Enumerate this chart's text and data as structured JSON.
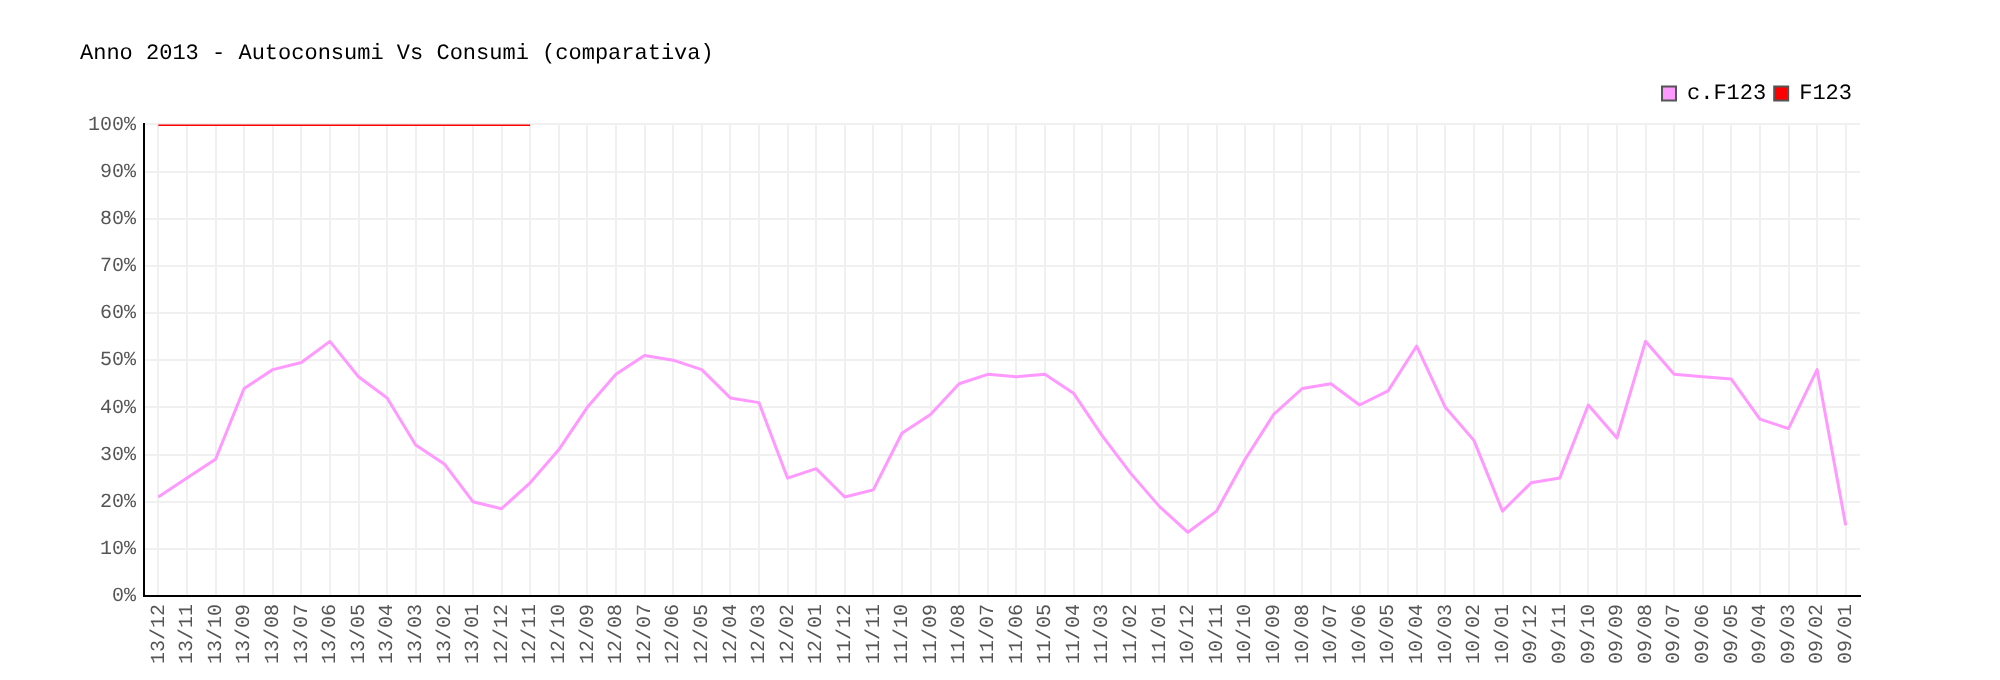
{
  "chart_data": {
    "type": "line",
    "title": "Anno 2013 - Autoconsumi Vs Consumi (comparativa)",
    "categories": [
      "13/12",
      "13/11",
      "13/10",
      "13/09",
      "13/08",
      "13/07",
      "13/06",
      "13/05",
      "13/04",
      "13/03",
      "13/02",
      "13/01",
      "12/12",
      "12/11",
      "12/10",
      "12/09",
      "12/08",
      "12/07",
      "12/06",
      "12/05",
      "12/04",
      "12/03",
      "12/02",
      "12/01",
      "11/12",
      "11/11",
      "11/10",
      "11/09",
      "11/08",
      "11/07",
      "11/06",
      "11/05",
      "11/04",
      "11/03",
      "11/02",
      "11/01",
      "10/12",
      "10/11",
      "10/10",
      "10/09",
      "10/08",
      "10/07",
      "10/06",
      "10/05",
      "10/04",
      "10/03",
      "10/02",
      "10/01",
      "09/12",
      "09/11",
      "09/10",
      "09/09",
      "09/08",
      "09/07",
      "09/06",
      "09/05",
      "09/04",
      "09/03",
      "09/02",
      "09/01"
    ],
    "series": [
      {
        "name": "c.F123",
        "color": "#ff99ff",
        "values": [
          21,
          25,
          29,
          44,
          48,
          49.5,
          54,
          46.5,
          42,
          32,
          28,
          20,
          18.5,
          24,
          31,
          40,
          47,
          51,
          50,
          48,
          42,
          41,
          25,
          27,
          21,
          22.5,
          34.5,
          38.5,
          45,
          47,
          46.5,
          47,
          43,
          34,
          26,
          19,
          13.5,
          18,
          29,
          38.5,
          44,
          45,
          40.5,
          43.5,
          53,
          40,
          33,
          18,
          24,
          25,
          40.5,
          33.5,
          54,
          47,
          46.5,
          46,
          37.5,
          35.5,
          48,
          15
        ]
      },
      {
        "name": "F123",
        "color": "#ff0000",
        "values": [
          100,
          100,
          100,
          100,
          100,
          100,
          100,
          100,
          100,
          100,
          100,
          100,
          100,
          100,
          null,
          null,
          null,
          null,
          null,
          null,
          null,
          null,
          null,
          null,
          null,
          null,
          null,
          null,
          null,
          null,
          null,
          null,
          null,
          null,
          null,
          null,
          null,
          null,
          null,
          null,
          null,
          null,
          null,
          null,
          null,
          null,
          null,
          null,
          null,
          null,
          null,
          null,
          null,
          null,
          null,
          null,
          null,
          null,
          null,
          null
        ]
      }
    ],
    "ylim": [
      0,
      100
    ],
    "yticks": [
      {
        "value": 0,
        "label": "0%"
      },
      {
        "value": 10,
        "label": "10%"
      },
      {
        "value": 20,
        "label": "20%"
      },
      {
        "value": 30,
        "label": "30%"
      },
      {
        "value": 40,
        "label": "40%"
      },
      {
        "value": 50,
        "label": "50%"
      },
      {
        "value": 60,
        "label": "60%"
      },
      {
        "value": 70,
        "label": "70%"
      },
      {
        "value": 80,
        "label": "80%"
      },
      {
        "value": 90,
        "label": "90%"
      },
      {
        "value": 100,
        "label": "100%"
      }
    ],
    "grid": true,
    "legend": "top right",
    "marker": "none",
    "line_style": "solid"
  }
}
